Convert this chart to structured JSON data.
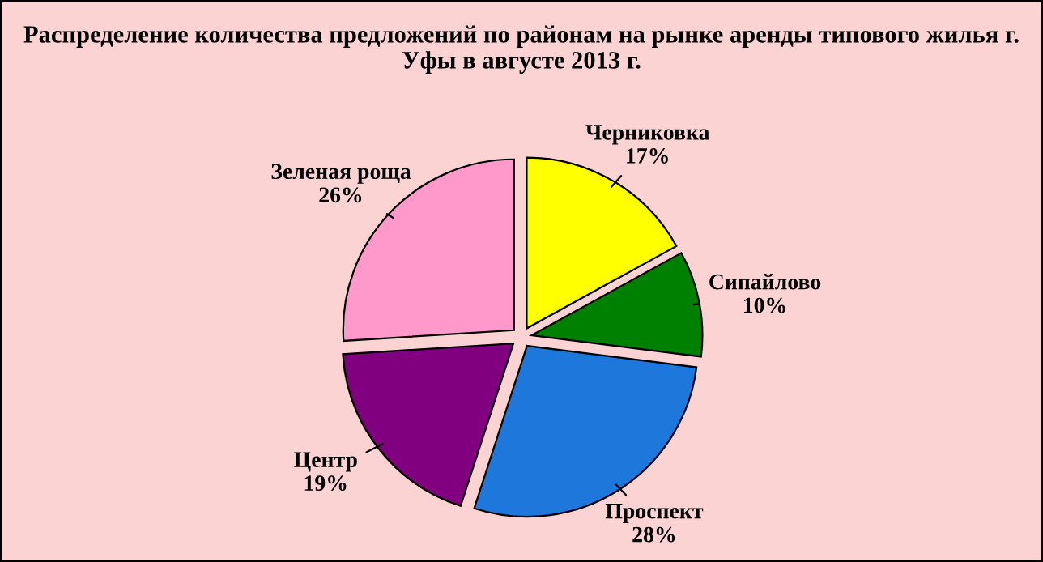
{
  "chart_data": {
    "type": "pie",
    "title": "Распределение количества предложений по районам на рынке аренды типового жилья г. Уфы в августе 2013 г.",
    "categories": [
      "Черниковка",
      "Сипайлово",
      "Проспект",
      "Центр",
      "Зеленая роща"
    ],
    "values": [
      17,
      10,
      28,
      19,
      26
    ],
    "value_labels": [
      "17%",
      "10%",
      "28%",
      "19%",
      "26%"
    ],
    "colors": [
      "#ffff00",
      "#008000",
      "#1e78dc",
      "#800080",
      "#ff99cc"
    ],
    "legend": false
  }
}
